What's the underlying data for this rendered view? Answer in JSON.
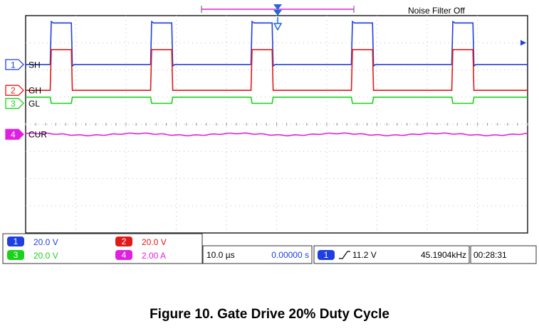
{
  "caption": "Figure 10. Gate Drive 20% Duty Cycle",
  "header": {
    "noise_filter": "Noise Filter Off"
  },
  "chart_data": {
    "type": "line",
    "title": "Figure 10. Gate Drive 20% Duty Cycle",
    "x_unit": "div",
    "xlim": [
      0,
      10
    ],
    "ylim": [
      -4,
      4
    ],
    "grid": true,
    "series": [
      {
        "name": "SH",
        "channel": "1",
        "color": "#1f3fe0",
        "low": 2.2,
        "high": 3.73,
        "overshoot": 0.05,
        "invert": false
      },
      {
        "name": "GH",
        "channel": "2",
        "color": "#e01919",
        "low": 1.25,
        "high": 2.75,
        "overshoot": 0.0,
        "invert": false
      },
      {
        "name": "GL",
        "channel": "3",
        "color": "#19d219",
        "low": 0.77,
        "high": 1.0,
        "overshoot": 0.0,
        "invert": true
      },
      {
        "name": "CUR",
        "channel": "4",
        "color": "#e020e0",
        "low": -0.37,
        "amplitude": 0.06,
        "invert": false
      }
    ],
    "pulses": [
      [
        0.49,
        0.91
      ],
      [
        2.49,
        2.91
      ],
      [
        4.49,
        4.91
      ],
      [
        6.49,
        6.91
      ],
      [
        8.49,
        8.91
      ]
    ],
    "trigger_level_ch1_y": 3.0
  },
  "readouts": {
    "ch1": {
      "label": "1",
      "value": "20.0 V",
      "color": "#1f3fe0"
    },
    "ch2": {
      "label": "2",
      "value": "20.0 V",
      "color": "#e01919"
    },
    "ch3": {
      "label": "3",
      "value": "20.0 V",
      "color": "#19d219"
    },
    "ch4": {
      "label": "4",
      "value": "2.00 A",
      "color": "#e020e0"
    },
    "timebase": "10.0 µs",
    "delay": "0.00000 s",
    "trigger_channel": "1",
    "trigger_level": "11.2 V",
    "frequency": "45.1904kHz",
    "clock": "00:28:31"
  }
}
